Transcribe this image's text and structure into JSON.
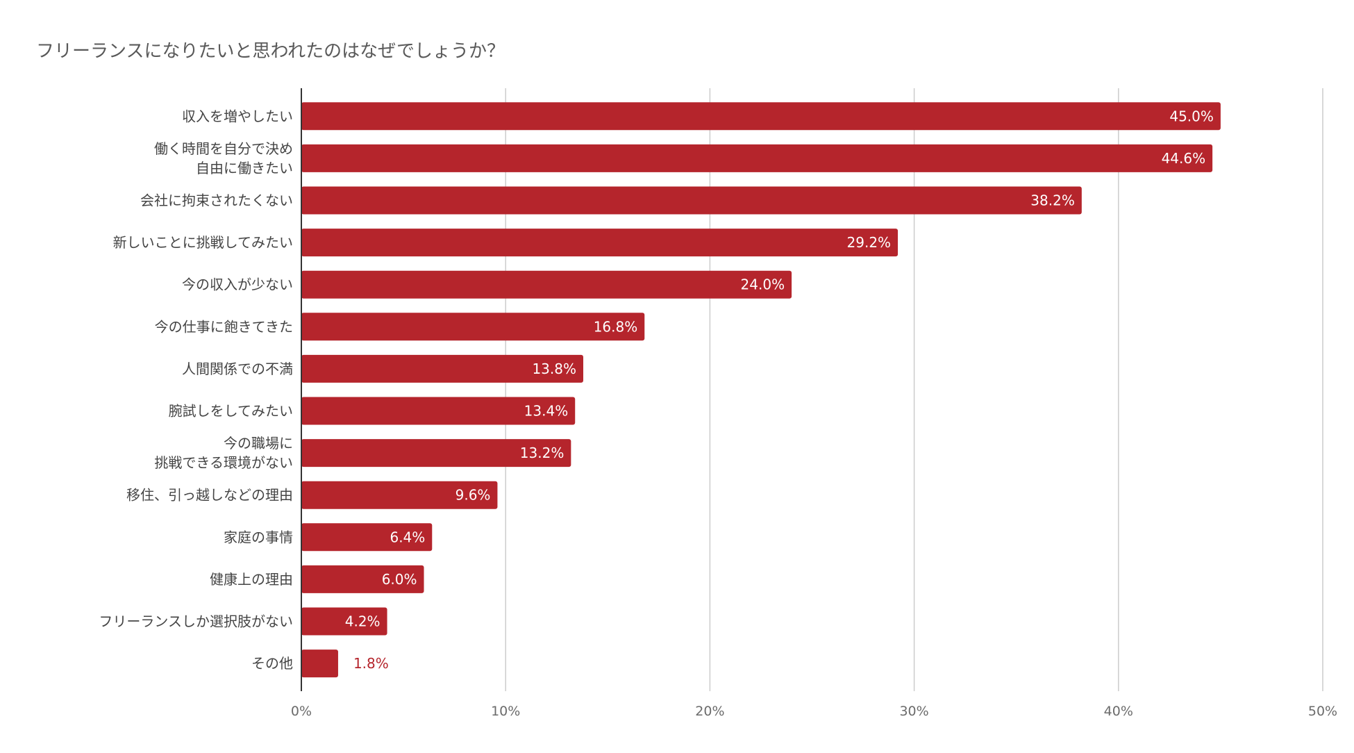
{
  "chart_data": {
    "type": "bar",
    "orientation": "horizontal",
    "title": "フリーランスになりたいと思われたのはなぜでしょうか？",
    "xlabel": "",
    "ylabel": "",
    "categories": [
      [
        "収入を増やしたい"
      ],
      [
        "働く時間を自分で決め",
        "自由に働きたい"
      ],
      [
        "会社に拘束されたくない"
      ],
      [
        "新しいことに挑戦してみたい"
      ],
      [
        "今の収入が少ない"
      ],
      [
        "今の仕事に飽きてきた"
      ],
      [
        "人間関係での不満"
      ],
      [
        "腕試しをしてみたい"
      ],
      [
        "今の職場に",
        "挑戦できる環境がない"
      ],
      [
        "移住、引っ越しなどの理由"
      ],
      [
        "家庭の事情"
      ],
      [
        "健康上の理由"
      ],
      [
        "フリーランスしか選択肢がない"
      ],
      [
        "その他"
      ]
    ],
    "values": [
      45.0,
      44.6,
      38.2,
      29.2,
      24.0,
      16.8,
      13.8,
      13.4,
      13.2,
      9.6,
      6.4,
      6.0,
      4.2,
      1.8
    ],
    "data_labels": [
      "45.0%",
      "44.6%",
      "38.2%",
      "29.2%",
      "24.0%",
      "16.8%",
      "13.8%",
      "13.4%",
      "13.2%",
      "9.6%",
      "6.4%",
      "6.0%",
      "4.2%",
      "1.8%"
    ],
    "xlim": [
      0,
      50
    ],
    "ticks": [
      0,
      10,
      20,
      30,
      40,
      50
    ],
    "tick_labels": [
      "0%",
      "10%",
      "20%",
      "30%",
      "40%",
      "50%"
    ],
    "grid": true,
    "legend": "none",
    "colors": {
      "bar": "#b5252c",
      "grid": "#cccccc",
      "axis": "#333333",
      "label_inside": "#ffffff",
      "label_outside": "#b5252c"
    }
  }
}
